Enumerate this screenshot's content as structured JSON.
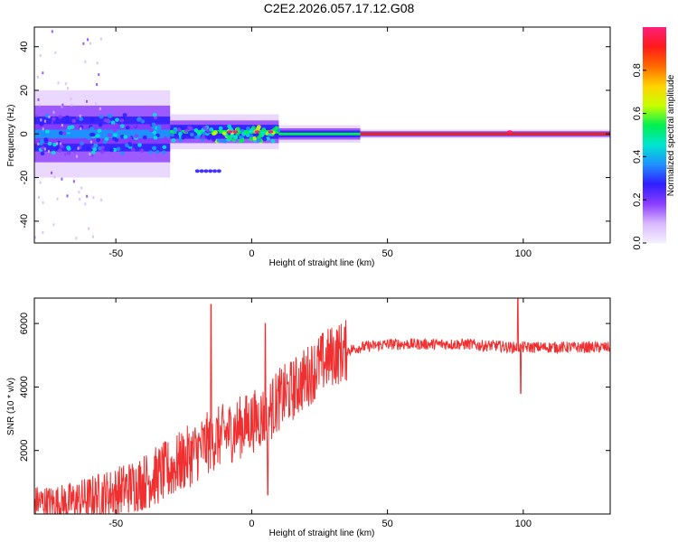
{
  "title": "C2E2.2026.057.17.12.G08",
  "chart_data": [
    {
      "type": "heatmap",
      "panel": "spectrogram",
      "xlabel": "Height of straight line (km)",
      "ylabel": "Frequency (Hz)",
      "xlim": [
        -80,
        132
      ],
      "ylim": [
        -50,
        49
      ],
      "xticks": [
        -50,
        0,
        50,
        100
      ],
      "yticks": [
        -40,
        -20,
        0,
        20,
        40
      ],
      "colorbar": {
        "label": "Normalized spectral amplitude",
        "range": [
          0,
          1
        ],
        "ticks": [
          0.0,
          0.2,
          0.4,
          0.6,
          0.8
        ],
        "colormap": [
          "#f4f0ff",
          "#d9b8ff",
          "#8a3cff",
          "#2f1fff",
          "#1f90ff",
          "#00e5d0",
          "#00f050",
          "#c8ff00",
          "#ffd200",
          "#ff6a00",
          "#ff1a1a",
          "#ff1f7a"
        ]
      },
      "ridges": [
        {
          "x_range": [
            -80,
            -30
          ],
          "center_freq": 0,
          "spread_hz": 10,
          "amplitude": 0.35
        },
        {
          "x_range": [
            -30,
            10
          ],
          "center_freq": 1,
          "spread_hz": 4,
          "amplitude": 0.55
        },
        {
          "x_range": [
            10,
            40
          ],
          "center_freq": 0,
          "spread_hz": 2,
          "amplitude": 0.55
        },
        {
          "x_range": [
            40,
            132
          ],
          "center_freq": 0,
          "spread_hz": 1,
          "amplitude": 0.95
        }
      ],
      "features": [
        {
          "x_range": [
            -80,
            -65
          ],
          "freq_range": [
            -48,
            48
          ],
          "note": "scattered faint energy"
        },
        {
          "x_range": [
            -20,
            -12
          ],
          "freq": -17,
          "note": "secondary faint branch"
        }
      ]
    },
    {
      "type": "line",
      "panel": "snr",
      "xlabel": "Height of straight line (km)",
      "ylabel": "SNR (10 * v/v)",
      "xlim": [
        -80,
        132
      ],
      "ylim": [
        0,
        6800
      ],
      "xticks": [
        -50,
        0,
        50,
        100
      ],
      "yticks": [
        2000,
        4000,
        6000
      ],
      "line_color": "#f03030",
      "series": [
        {
          "name": "SNR",
          "x": [
            -80,
            -75,
            -70,
            -65,
            -60,
            -55,
            -50,
            -45,
            -40,
            -35,
            -30,
            -25,
            -20,
            -15,
            -10,
            -5,
            0,
            5,
            10,
            15,
            20,
            25,
            30,
            35,
            40,
            45,
            50,
            55,
            60,
            65,
            70,
            75,
            80,
            85,
            90,
            95,
            100,
            105,
            110,
            115,
            120,
            125,
            132
          ],
          "y": [
            400,
            350,
            350,
            400,
            500,
            600,
            700,
            850,
            1000,
            1200,
            1400,
            1700,
            2000,
            2300,
            2500,
            2700,
            2900,
            3100,
            3600,
            3900,
            4300,
            4700,
            5000,
            5150,
            5250,
            5300,
            5350,
            5350,
            5350,
            5350,
            5350,
            5350,
            5350,
            5300,
            5300,
            5250,
            5250,
            5250,
            5250,
            5250,
            5250,
            5250,
            5250
          ]
        }
      ],
      "spikes": [
        {
          "x": -15,
          "y": 6600
        },
        {
          "x": 5,
          "y": 6000
        },
        {
          "x": 6,
          "y": 600
        },
        {
          "x": 98,
          "y": 6800
        },
        {
          "x": 99,
          "y": 3800
        }
      ]
    }
  ]
}
